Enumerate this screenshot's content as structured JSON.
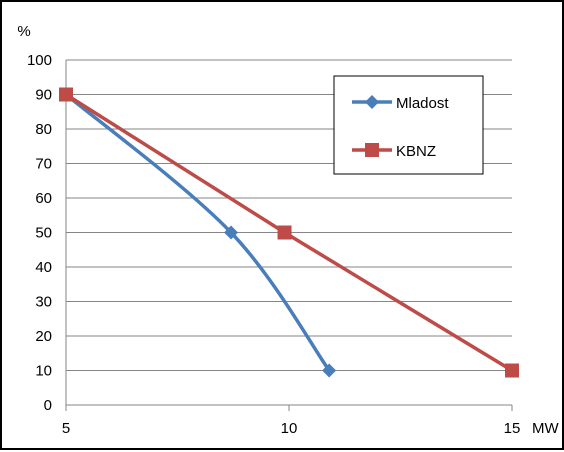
{
  "chart_data": {
    "type": "line",
    "y_unit_label": "%",
    "x_unit_label": "MW",
    "xlim": [
      5,
      15
    ],
    "ylim": [
      0,
      100
    ],
    "x_ticks": [
      "5",
      "10",
      "15"
    ],
    "y_ticks": [
      "0",
      "10",
      "20",
      "30",
      "40",
      "50",
      "60",
      "70",
      "80",
      "90",
      "100"
    ],
    "grid": "horizontal",
    "legend_position": "top-right",
    "series": [
      {
        "name": "Mladost",
        "color": "#4A7EBB",
        "marker": "diamond",
        "smooth": true,
        "points": [
          {
            "x": 5,
            "y": 90
          },
          {
            "x": 8.7,
            "y": 50
          },
          {
            "x": 10.9,
            "y": 10
          }
        ]
      },
      {
        "name": "KBNZ",
        "color": "#BE4B48",
        "marker": "square",
        "smooth": false,
        "points": [
          {
            "x": 5,
            "y": 90
          },
          {
            "x": 9.9,
            "y": 50
          },
          {
            "x": 15,
            "y": 10
          }
        ]
      }
    ]
  }
}
